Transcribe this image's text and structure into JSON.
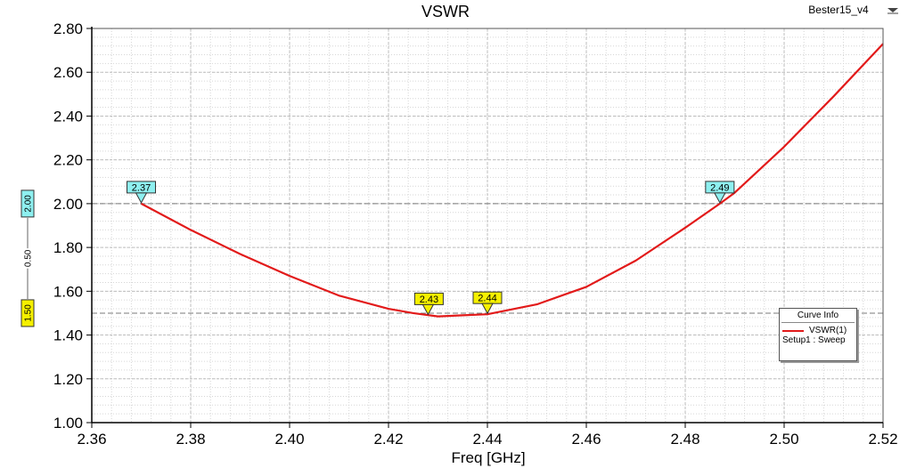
{
  "chart_data": {
    "type": "line",
    "title": "VSWR",
    "xlabel": "Freq [GHz]",
    "ylabel": "",
    "xlim": [
      2.36,
      2.52
    ],
    "ylim": [
      1.0,
      2.8
    ],
    "x_ticks": [
      "2.36",
      "2.38",
      "2.40",
      "2.42",
      "2.44",
      "2.46",
      "2.48",
      "2.50",
      "2.52"
    ],
    "y_ticks": [
      "1.00",
      "1.20",
      "1.40",
      "1.60",
      "1.80",
      "2.00",
      "2.20",
      "2.40",
      "2.60",
      "2.80"
    ],
    "grid": true,
    "series": [
      {
        "name": "VSWR(1)",
        "color": "#e21a1a",
        "x": [
          2.37,
          2.38,
          2.39,
          2.4,
          2.41,
          2.42,
          2.425,
          2.43,
          2.435,
          2.44,
          2.45,
          2.46,
          2.47,
          2.48,
          2.487,
          2.49,
          2.5,
          2.51,
          2.52
        ],
        "y": [
          2.0,
          1.88,
          1.77,
          1.67,
          1.58,
          1.52,
          1.5,
          1.485,
          1.49,
          1.495,
          1.54,
          1.62,
          1.74,
          1.89,
          2.0,
          2.05,
          2.26,
          2.49,
          2.73
        ]
      }
    ],
    "hlines": [
      {
        "y": 2.0,
        "label": "2.00",
        "color": "#8ef0f0"
      },
      {
        "y": 1.5,
        "label": "1.50",
        "color": "#f5f000"
      }
    ],
    "delta_label": "0.50",
    "markers": [
      {
        "label": "2.37",
        "x": 2.37,
        "y": 2.0,
        "color": "#8ef0f0"
      },
      {
        "label": "2.43",
        "x": 2.428,
        "y": 1.49,
        "color": "#f5f000"
      },
      {
        "label": "2.44",
        "x": 2.44,
        "y": 1.495,
        "color": "#f5f000"
      },
      {
        "label": "2.49",
        "x": 2.487,
        "y": 2.0,
        "color": "#8ef0f0"
      }
    ],
    "legend": {
      "title": "Curve Info",
      "entry": "VSWR(1)",
      "sub": "Setup1 : Sweep",
      "position": "bottom-right"
    }
  },
  "project_name": "Bester15_v4"
}
